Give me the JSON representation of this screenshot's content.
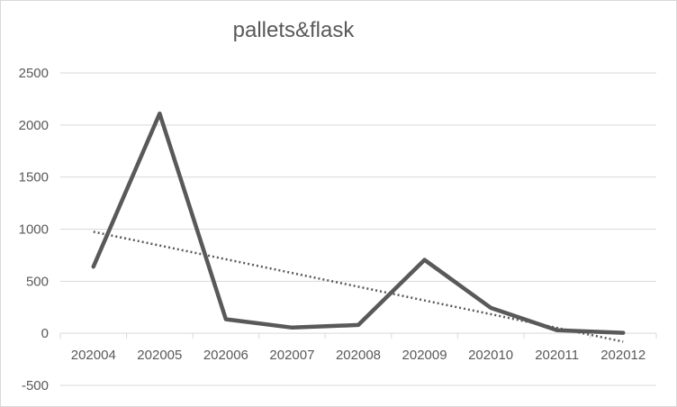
{
  "chart_data": {
    "type": "line",
    "title": "pallets&flask",
    "xlabel": "",
    "ylabel": "",
    "categories": [
      "202004",
      "202005",
      "202006",
      "202007",
      "202008",
      "202009",
      "202010",
      "202011",
      "202012"
    ],
    "series": [
      {
        "values": [
          640,
          2110,
          135,
          55,
          80,
          705,
          245,
          30,
          5
        ]
      }
    ],
    "trendline": {
      "type": "linear",
      "style": "dotted",
      "start": 975,
      "end": -80
    },
    "ylim": [
      -500,
      2500
    ],
    "yticks": [
      "2500",
      "2000",
      "1500",
      "1000",
      "500",
      "0",
      "-500"
    ],
    "ytick_values": [
      2500,
      2000,
      1500,
      1000,
      500,
      0,
      -500
    ],
    "grid": true,
    "legend": "none",
    "colors": {
      "series": "#595959",
      "trendline": "#595959",
      "grid": "#d9d9d9",
      "text": "#595959"
    }
  }
}
